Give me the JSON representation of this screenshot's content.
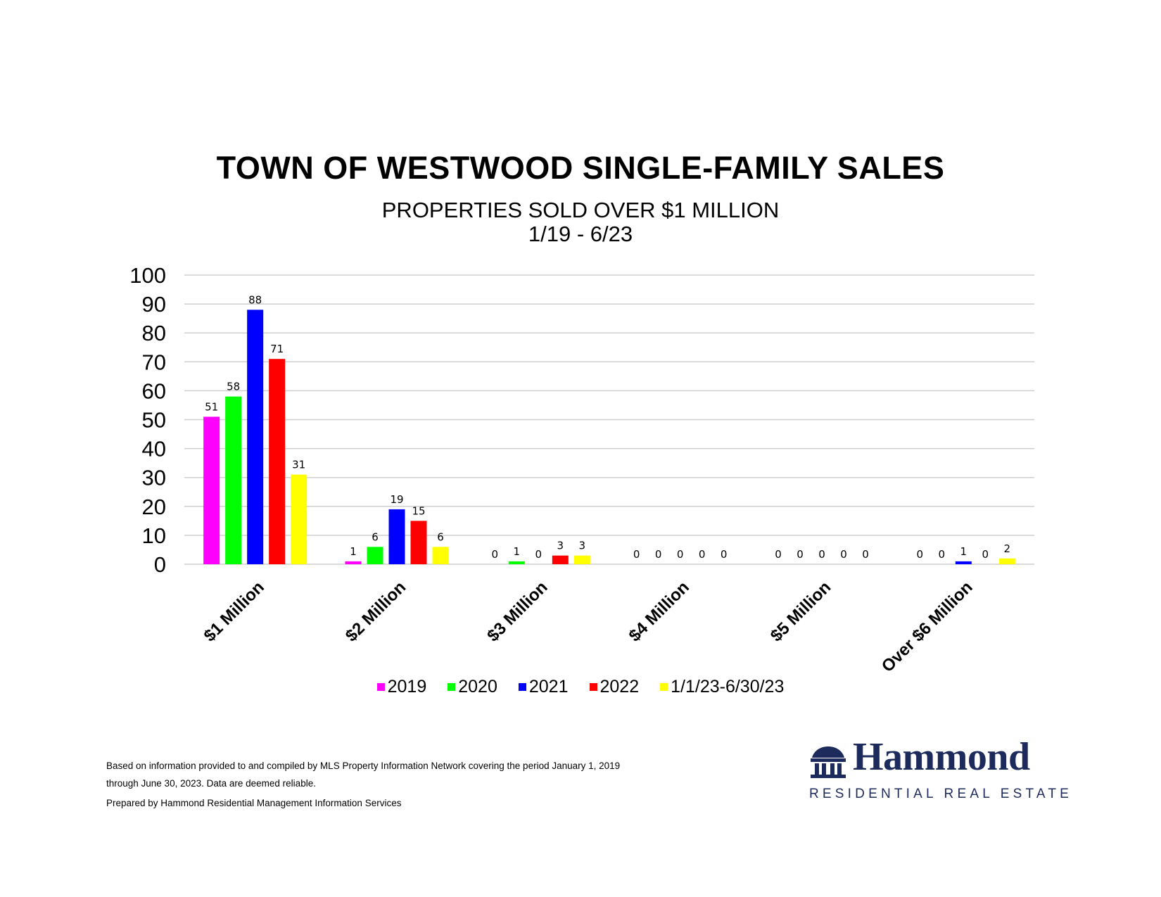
{
  "chart_data": {
    "type": "bar",
    "title": "TOWN OF WESTWOOD SINGLE-FAMILY SALES",
    "subtitle": [
      "PROPERTIES SOLD OVER $1 MILLION",
      "1/19 - 6/23"
    ],
    "categories": [
      "$1 Million",
      "$2 Million",
      "$3 Million",
      "$4 Million",
      "$5 Million",
      "Over $6 Million"
    ],
    "series": [
      {
        "name": "2019",
        "color": "#ff00ff",
        "values": [
          51,
          1,
          0,
          0,
          0,
          0
        ]
      },
      {
        "name": "2020",
        "color": "#00ff00",
        "values": [
          58,
          6,
          1,
          0,
          0,
          0
        ]
      },
      {
        "name": "2021",
        "color": "#0000ff",
        "values": [
          88,
          19,
          0,
          0,
          0,
          1
        ]
      },
      {
        "name": "2022",
        "color": "#ff0000",
        "values": [
          71,
          15,
          3,
          0,
          0,
          0
        ]
      },
      {
        "name": "1/1/23-6/30/23",
        "color": "#ffff00",
        "values": [
          31,
          6,
          3,
          0,
          0,
          2
        ]
      }
    ],
    "ylim": [
      0,
      100
    ],
    "yticks": [
      0,
      10,
      20,
      30,
      40,
      50,
      60,
      70,
      80,
      90,
      100
    ],
    "xlabel": "",
    "ylabel": "",
    "grid": true,
    "legend_position": "bottom"
  },
  "footnote": {
    "line1": "Based on information provided to and compiled by MLS Property Information Network covering the period January 1, 2019",
    "line2": "through June 30, 2023. Data are deemed reliable.",
    "prepared": "Prepared by Hammond Residential Management Information Services"
  },
  "logo": {
    "name": "Hammond",
    "tagline": "RESIDENTIAL REAL ESTATE",
    "color": "#1c2a5c"
  }
}
